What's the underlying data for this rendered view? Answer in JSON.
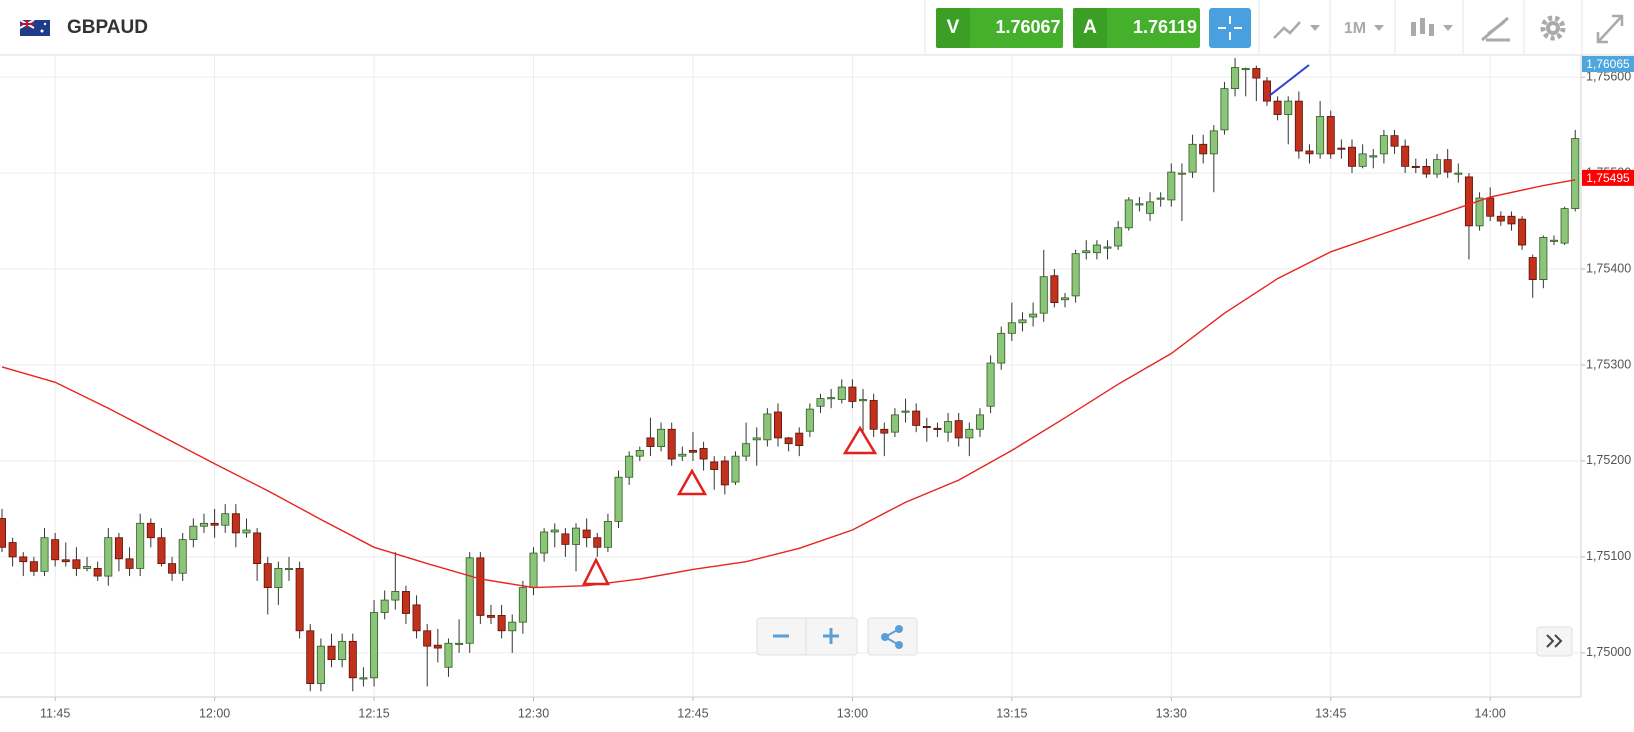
{
  "header": {
    "symbol": "GBPAUD",
    "sell_label": "V",
    "sell_price": "1.76067",
    "buy_label": "A",
    "buy_price": "1.76119",
    "timeframe": "1M"
  },
  "chart_data": {
    "type": "candlestick",
    "x": [
      "11:40",
      "11:41",
      "11:42",
      "11:43",
      "11:44",
      "11:45",
      "11:46",
      "11:47",
      "11:48",
      "11:49",
      "11:50",
      "11:51",
      "11:52",
      "11:53",
      "11:54",
      "11:55",
      "11:56",
      "11:57",
      "11:58",
      "11:59",
      "12:00",
      "12:01",
      "12:02",
      "12:03",
      "12:04",
      "12:05",
      "12:06",
      "12:07",
      "12:08",
      "12:09",
      "12:10",
      "12:11",
      "12:12",
      "12:13",
      "12:14",
      "12:15",
      "12:16",
      "12:17",
      "12:18",
      "12:19",
      "12:20",
      "12:21",
      "12:22",
      "12:23",
      "12:24",
      "12:25",
      "12:26",
      "12:27",
      "12:28",
      "12:29",
      "12:30",
      "12:31",
      "12:32",
      "12:33",
      "12:34",
      "12:35",
      "12:36",
      "12:37",
      "12:38",
      "12:39",
      "12:40",
      "12:41",
      "12:42",
      "12:43",
      "12:44",
      "12:45",
      "12:46",
      "12:47",
      "12:48",
      "12:49",
      "12:50",
      "12:51",
      "12:52",
      "12:53",
      "12:54",
      "12:55",
      "12:56",
      "12:57",
      "12:58",
      "12:59",
      "13:00",
      "13:01",
      "13:02",
      "13:03",
      "13:04",
      "13:05",
      "13:06",
      "13:07",
      "13:08",
      "13:09",
      "13:10",
      "13:11",
      "13:12",
      "13:13",
      "13:14",
      "13:15",
      "13:16",
      "13:17",
      "13:18",
      "13:19",
      "13:20",
      "13:21",
      "13:22",
      "13:23",
      "13:24",
      "13:25",
      "13:26",
      "13:27",
      "13:28",
      "13:29",
      "13:30",
      "13:31",
      "13:32",
      "13:33",
      "13:34",
      "13:35",
      "13:36",
      "13:37",
      "13:38",
      "13:39",
      "13:40",
      "13:41",
      "13:42",
      "13:43",
      "13:44",
      "13:45",
      "13:46",
      "13:47",
      "13:48",
      "13:49",
      "13:50",
      "13:51",
      "13:52",
      "13:53",
      "13:54",
      "13:55",
      "13:56",
      "13:57",
      "13:58",
      "13:59",
      "14:00",
      "14:01",
      "14:02",
      "14:03",
      "14:04",
      "14:05",
      "14:06",
      "14:07",
      "14:08"
    ],
    "open": [
      1.7514,
      1.75115,
      1.751,
      1.75095,
      1.75085,
      1.75118,
      1.75097,
      1.75097,
      1.75088,
      1.75088,
      1.7508,
      1.7512,
      1.75098,
      1.75088,
      1.75135,
      1.7512,
      1.75093,
      1.75083,
      1.75118,
      1.75132,
      1.75135,
      1.75133,
      1.75145,
      1.75125,
      1.75125,
      1.75093,
      1.75068,
      1.75088,
      1.75088,
      1.75023,
      1.74968,
      1.75007,
      1.74993,
      1.75012,
      1.74974,
      1.74974,
      1.75042,
      1.75055,
      1.75064,
      1.7505,
      1.75023,
      1.75008,
      1.74985,
      1.7501,
      1.7501,
      1.75099,
      1.75039,
      1.75039,
      1.75023,
      1.75032,
      1.75068,
      1.75104,
      1.75126,
      1.75124,
      1.75113,
      1.75128,
      1.7512,
      1.7511,
      1.75137,
      1.75183,
      1.75205,
      1.75224,
      1.75215,
      1.75233,
      1.75205,
      1.75211,
      1.75213,
      1.75199,
      1.752,
      1.75178,
      1.75205,
      1.75222,
      1.75222,
      1.75251,
      1.75224,
      1.75229,
      1.75231,
      1.75257,
      1.75266,
      1.75264,
      1.75277,
      1.75263,
      1.75263,
      1.75233,
      1.7523,
      1.75251,
      1.75252,
      1.75236,
      1.75234,
      1.7523,
      1.75242,
      1.75224,
      1.75233,
      1.75257,
      1.75302,
      1.75333,
      1.75344,
      1.7535,
      1.75354,
      1.75393,
      1.75368,
      1.75372,
      1.75417,
      1.75417,
      1.75423,
      1.75424,
      1.75443,
      1.75468,
      1.75458,
      1.75473,
      1.75472,
      1.755,
      1.75501,
      1.7553,
      1.7552,
      1.75545,
      1.75588,
      1.75609,
      1.75609,
      1.75596,
      1.75575,
      1.75561,
      1.75575,
      1.75523,
      1.7552,
      1.75559,
      1.75526,
      1.75527,
      1.75507,
      1.75518,
      1.7552,
      1.75539,
      1.75528,
      1.75507,
      1.75507,
      1.75499,
      1.75514,
      1.75499,
      1.75496,
      1.75445,
      1.75474,
      1.75455,
      1.75455,
      1.75452,
      1.75412,
      1.75389,
      1.7543,
      1.75427,
      1.75463
    ],
    "high": [
      1.7515,
      1.7512,
      1.75105,
      1.751,
      1.7513,
      1.75125,
      1.75115,
      1.7511,
      1.751,
      1.75095,
      1.7513,
      1.75125,
      1.7511,
      1.75145,
      1.7514,
      1.7513,
      1.751,
      1.75125,
      1.7514,
      1.75145,
      1.7515,
      1.75155,
      1.75155,
      1.7514,
      1.7513,
      1.751,
      1.75095,
      1.751,
      1.75095,
      1.7503,
      1.75015,
      1.7502,
      1.7502,
      1.7502,
      1.74985,
      1.75055,
      1.75065,
      1.75105,
      1.7507,
      1.7506,
      1.7503,
      1.75025,
      1.75015,
      1.75035,
      1.75105,
      1.75105,
      1.7505,
      1.7505,
      1.7504,
      1.75075,
      1.7511,
      1.7513,
      1.75135,
      1.7513,
      1.75135,
      1.7514,
      1.75125,
      1.75145,
      1.7519,
      1.7521,
      1.75215,
      1.75245,
      1.7524,
      1.7524,
      1.75215,
      1.7523,
      1.7522,
      1.75205,
      1.75205,
      1.7521,
      1.7524,
      1.75235,
      1.75255,
      1.7526,
      1.75225,
      1.75235,
      1.7526,
      1.7527,
      1.75275,
      1.75285,
      1.75285,
      1.75275,
      1.7527,
      1.7524,
      1.75255,
      1.75265,
      1.7526,
      1.75245,
      1.7524,
      1.7525,
      1.7525,
      1.7524,
      1.75255,
      1.7531,
      1.7534,
      1.75365,
      1.75355,
      1.75365,
      1.7542,
      1.754,
      1.75375,
      1.7542,
      1.7543,
      1.7543,
      1.7543,
      1.7545,
      1.75475,
      1.75475,
      1.7548,
      1.7548,
      1.7551,
      1.7551,
      1.7554,
      1.7554,
      1.7555,
      1.75595,
      1.7562,
      1.7561,
      1.75612,
      1.756,
      1.7558,
      1.7558,
      1.75585,
      1.7553,
      1.75575,
      1.75565,
      1.75535,
      1.75535,
      1.7553,
      1.75525,
      1.75545,
      1.75545,
      1.75535,
      1.75515,
      1.75515,
      1.7552,
      1.75525,
      1.7551,
      1.755,
      1.7548,
      1.75485,
      1.7546,
      1.7546,
      1.75455,
      1.75415,
      1.75435,
      1.75435,
      1.75465,
      1.75545
    ],
    "low": [
      1.75105,
      1.7509,
      1.7508,
      1.7508,
      1.7508,
      1.7509,
      1.7509,
      1.7508,
      1.75085,
      1.75075,
      1.7507,
      1.75085,
      1.7508,
      1.7508,
      1.7511,
      1.7509,
      1.75075,
      1.75075,
      1.7511,
      1.75125,
      1.7512,
      1.75125,
      1.7511,
      1.7512,
      1.75075,
      1.7504,
      1.7505,
      1.75075,
      1.75015,
      1.7496,
      1.7496,
      1.74985,
      1.74985,
      1.7496,
      1.74965,
      1.74965,
      1.75035,
      1.75045,
      1.7503,
      1.75015,
      1.74965,
      1.7499,
      1.74975,
      1.75,
      1.75,
      1.7503,
      1.7503,
      1.75015,
      1.75,
      1.7502,
      1.7506,
      1.75095,
      1.7511,
      1.751,
      1.75085,
      1.7511,
      1.751,
      1.75105,
      1.7513,
      1.75175,
      1.752,
      1.75205,
      1.7521,
      1.75195,
      1.752,
      1.752,
      1.7519,
      1.7517,
      1.75165,
      1.75175,
      1.752,
      1.75195,
      1.75215,
      1.75215,
      1.7521,
      1.75205,
      1.75225,
      1.7525,
      1.75255,
      1.7526,
      1.75255,
      1.75225,
      1.75225,
      1.75205,
      1.75225,
      1.7524,
      1.7523,
      1.7522,
      1.75225,
      1.7522,
      1.75215,
      1.75205,
      1.75225,
      1.7525,
      1.75295,
      1.75325,
      1.75335,
      1.7534,
      1.75345,
      1.7536,
      1.7536,
      1.75365,
      1.7541,
      1.7541,
      1.7541,
      1.7542,
      1.7544,
      1.7546,
      1.7545,
      1.75465,
      1.75465,
      1.7545,
      1.75495,
      1.7551,
      1.7548,
      1.7554,
      1.7558,
      1.7558,
      1.75575,
      1.7557,
      1.75555,
      1.7553,
      1.75515,
      1.7551,
      1.75515,
      1.75515,
      1.75515,
      1.755,
      1.75505,
      1.75505,
      1.7551,
      1.7552,
      1.755,
      1.755,
      1.75495,
      1.75495,
      1.75495,
      1.7549,
      1.7541,
      1.7544,
      1.7545,
      1.75445,
      1.7544,
      1.7542,
      1.7537,
      1.7538,
      1.75425,
      1.75425,
      1.7546
    ],
    "close": [
      1.7511,
      1.751,
      1.75095,
      1.75085,
      1.7512,
      1.75097,
      1.75095,
      1.75088,
      1.7509,
      1.7508,
      1.7512,
      1.75098,
      1.75088,
      1.75135,
      1.7512,
      1.75093,
      1.75083,
      1.75118,
      1.75132,
      1.75135,
      1.75133,
      1.75145,
      1.75125,
      1.75128,
      1.75093,
      1.75068,
      1.75088,
      1.75088,
      1.75023,
      1.74968,
      1.75007,
      1.74993,
      1.75012,
      1.74974,
      1.74974,
      1.75042,
      1.75055,
      1.75064,
      1.75041,
      1.75023,
      1.75007,
      1.75005,
      1.7501,
      1.7501,
      1.75099,
      1.75039,
      1.75037,
      1.75023,
      1.75032,
      1.75068,
      1.75104,
      1.75126,
      1.75128,
      1.75113,
      1.7513,
      1.7512,
      1.7511,
      1.75137,
      1.75183,
      1.75205,
      1.75211,
      1.75215,
      1.75233,
      1.75202,
      1.75207,
      1.75209,
      1.75202,
      1.75191,
      1.75175,
      1.75205,
      1.75218,
      1.75224,
      1.75249,
      1.75224,
      1.75218,
      1.75216,
      1.75254,
      1.75265,
      1.75266,
      1.75277,
      1.75262,
      1.75264,
      1.75233,
      1.75229,
      1.75248,
      1.75252,
      1.75237,
      1.75235,
      1.75233,
      1.75241,
      1.75224,
      1.75233,
      1.75248,
      1.75302,
      1.75333,
      1.75344,
      1.75347,
      1.75353,
      1.75392,
      1.75365,
      1.7537,
      1.75416,
      1.75419,
      1.75425,
      1.75423,
      1.75443,
      1.75472,
      1.75468,
      1.7547,
      1.75474,
      1.75501,
      1.755,
      1.7553,
      1.7552,
      1.75544,
      1.75588,
      1.7561,
      1.75609,
      1.75599,
      1.75575,
      1.75561,
      1.75575,
      1.75523,
      1.7552,
      1.75559,
      1.7552,
      1.75525,
      1.75507,
      1.7552,
      1.75518,
      1.75539,
      1.75528,
      1.75507,
      1.75506,
      1.75499,
      1.75514,
      1.75501,
      1.755,
      1.75445,
      1.75474,
      1.75455,
      1.7545,
      1.75447,
      1.75425,
      1.75389,
      1.75433,
      1.7543,
      1.75463,
      1.75536
    ],
    "up_color": "#8cc47a",
    "down_color": "#c1311c",
    "moving_average": {
      "color": "#e8241e",
      "x": [
        "11:40",
        "11:45",
        "11:50",
        "11:55",
        "12:00",
        "12:05",
        "12:10",
        "12:15",
        "12:20",
        "12:25",
        "12:30",
        "12:35",
        "12:40",
        "12:45",
        "12:50",
        "12:55",
        "13:00",
        "13:05",
        "13:10",
        "13:15",
        "13:20",
        "13:25",
        "13:30",
        "13:35",
        "13:40",
        "13:45",
        "13:50",
        "13:55",
        "14:00",
        "14:05",
        "14:08"
      ],
      "values": [
        1.75298,
        1.75282,
        1.75255,
        1.75226,
        1.75197,
        1.75169,
        1.75139,
        1.7511,
        1.75093,
        1.75077,
        1.75068,
        1.7507,
        1.75077,
        1.75087,
        1.75095,
        1.75109,
        1.75128,
        1.75157,
        1.7518,
        1.75211,
        1.75245,
        1.7528,
        1.75312,
        1.75354,
        1.7539,
        1.75418,
        1.75437,
        1.75456,
        1.75475,
        1.75487,
        1.75493
      ]
    },
    "price_tags": [
      {
        "value": 1.76065,
        "label": "1,76065",
        "color": "#4ea6dc"
      },
      {
        "value": 1.75495,
        "label": "1,75495",
        "color": "#ff0000"
      }
    ],
    "ylim": [
      1.74954,
      1.75622
    ],
    "yticks": [
      {
        "value": 1.75,
        "label": "1,75000"
      },
      {
        "value": 1.751,
        "label": "1,75100"
      },
      {
        "value": 1.752,
        "label": "1,75200"
      },
      {
        "value": 1.753,
        "label": "1,75300"
      },
      {
        "value": 1.754,
        "label": "1,75400"
      },
      {
        "value": 1.755,
        "label": "1,75500"
      },
      {
        "value": 1.756,
        "label": "1,75600"
      }
    ],
    "xticks": [
      "11:45",
      "12:00",
      "12:15",
      "12:30",
      "12:45",
      "13:00",
      "13:15",
      "13:30",
      "13:45",
      "14:00"
    ],
    "grid": true
  }
}
